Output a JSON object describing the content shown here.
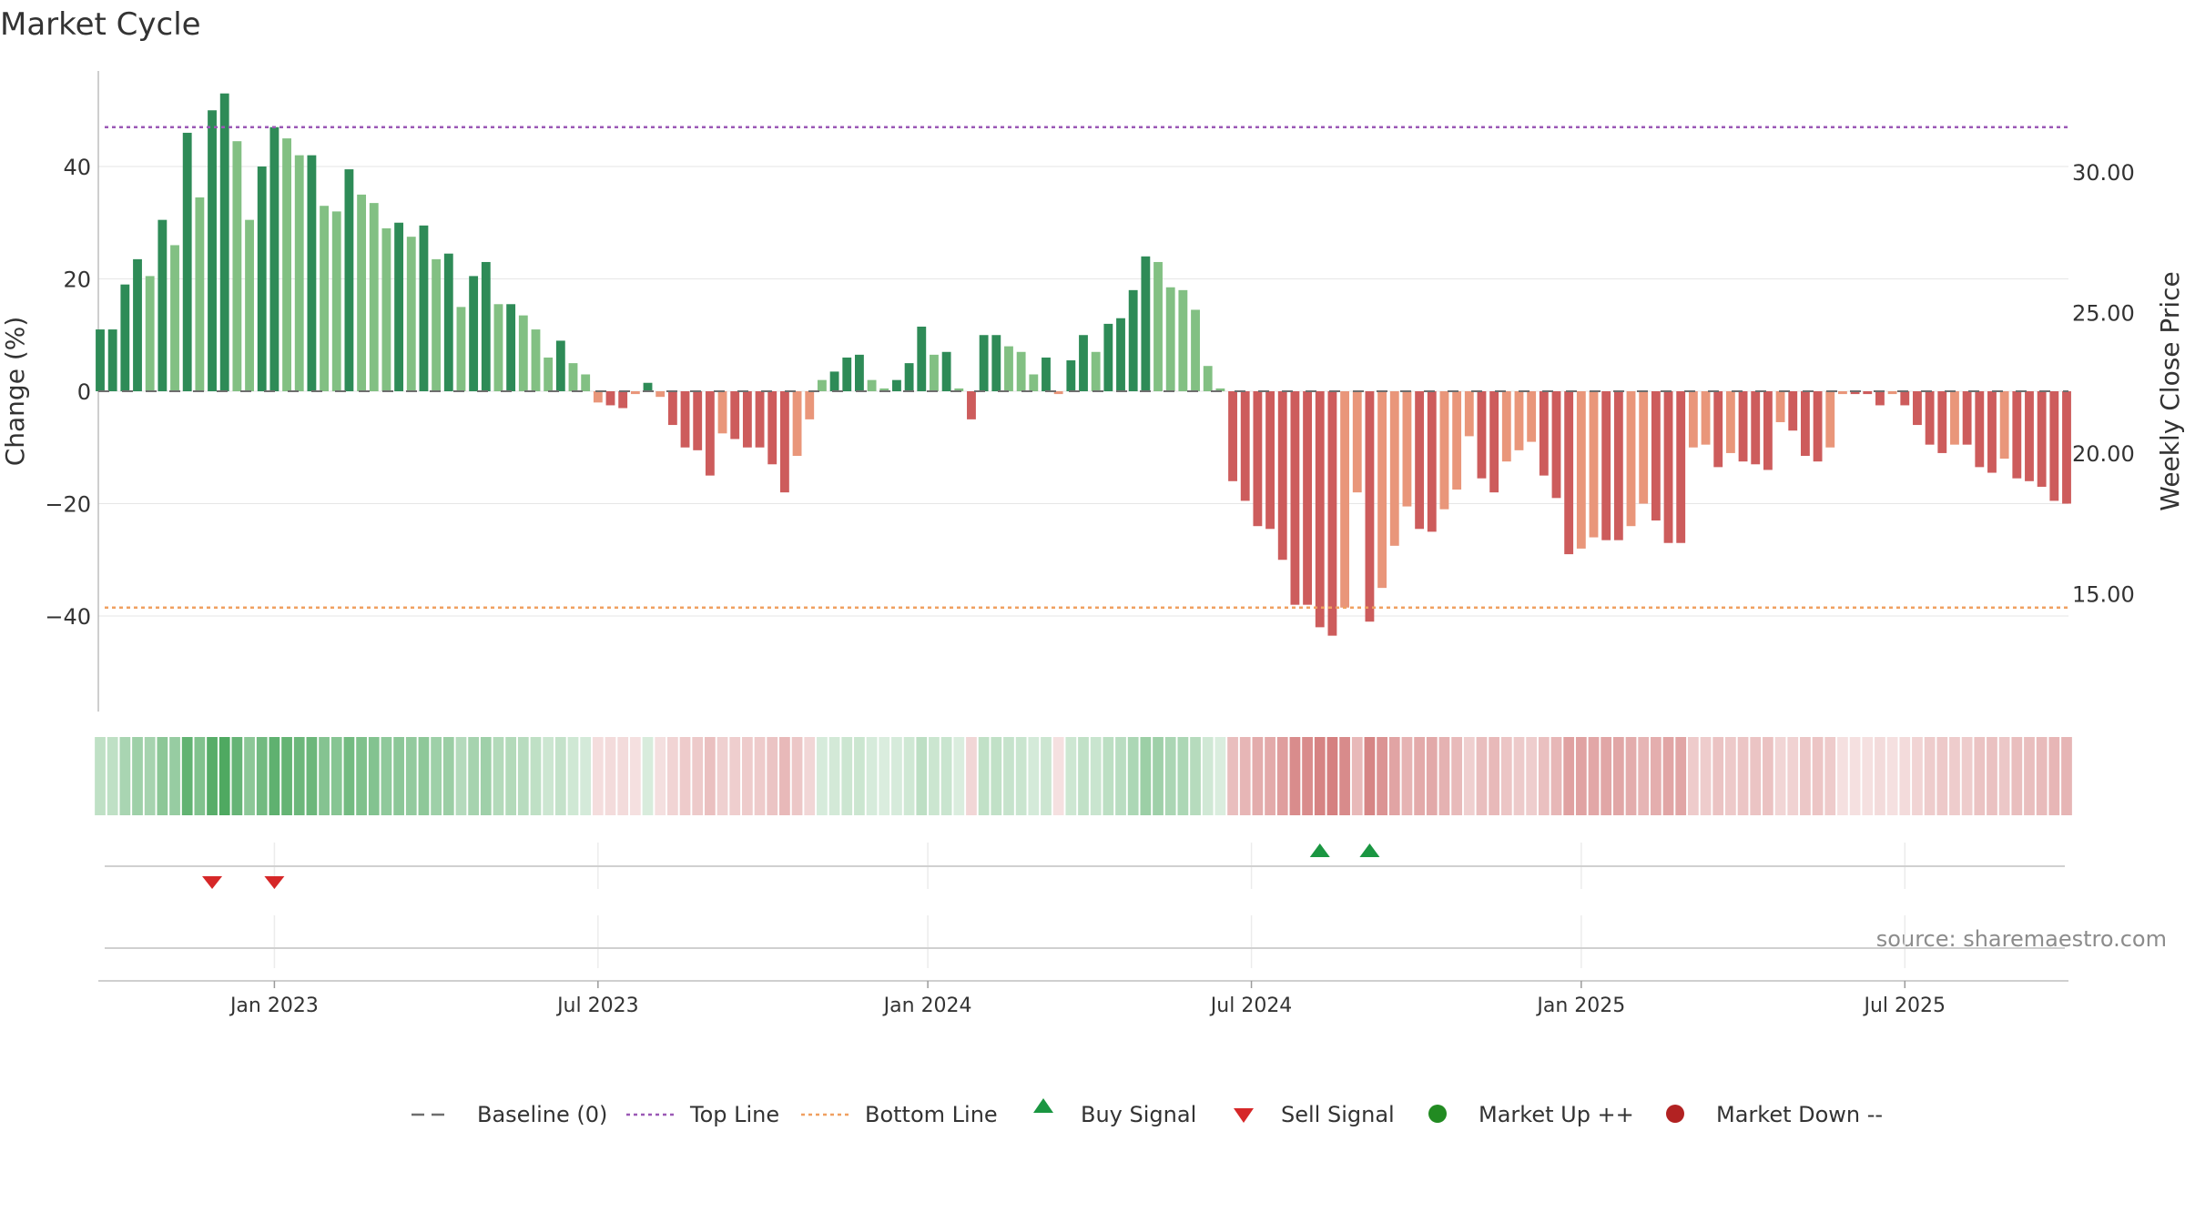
{
  "chart_data": {
    "type": "bar",
    "title": "Market Cycle",
    "ylabel": "Change (%)",
    "y2label": "Weekly Close Price",
    "ylim": [
      -57,
      57
    ],
    "y2lim": [
      10.8,
      33.6
    ],
    "y_ticks": [
      40,
      20,
      0,
      -20,
      -40
    ],
    "y_tick_labels": [
      "40",
      "20",
      "0",
      "−20",
      "−40"
    ],
    "y2_ticks": [
      30,
      25,
      20,
      15
    ],
    "y2_tick_labels": [
      "30.00",
      "25.00",
      "20.00",
      "15.00"
    ],
    "x_ticks": [
      {
        "label": "Jan 2023",
        "week": 14
      },
      {
        "label": "Jul 2023",
        "week": 40
      },
      {
        "label": "Jan 2024",
        "week": 66.5
      },
      {
        "label": "Jul 2024",
        "week": 92.5
      },
      {
        "label": "Jan 2025",
        "week": 119
      },
      {
        "label": "Jul 2025",
        "week": 145
      }
    ],
    "top_line": 47,
    "bottom_line": -38.5,
    "weekly_change": [
      11,
      11,
      19,
      23.5,
      20.5,
      30.5,
      26,
      46,
      34.5,
      50,
      53,
      44.5,
      30.5,
      40,
      47,
      45,
      42,
      42,
      33,
      32,
      39.5,
      35,
      33.5,
      29,
      30,
      27.5,
      29.5,
      23.5,
      24.5,
      15,
      20.5,
      23,
      15.5,
      15.5,
      13.5,
      11,
      6,
      9,
      5,
      3,
      -2,
      -2.5,
      -3,
      -0.5,
      1.5,
      -1,
      -6,
      -10,
      -10.5,
      -15,
      -7.5,
      -8.5,
      -10,
      -10,
      -13,
      -18,
      -11.5,
      -5,
      2,
      3.5,
      6,
      6.5,
      2,
      0.5,
      2,
      5,
      11.5,
      6.5,
      7,
      0.5,
      -5,
      10,
      10,
      8,
      7,
      3,
      6,
      -0.5,
      5.5,
      10,
      7,
      12,
      13,
      18,
      24,
      23,
      18.5,
      18,
      14.5,
      4.5,
      0.5,
      -16,
      -19.5,
      -24,
      -24.5,
      -30,
      -38,
      -38,
      -42,
      -43.5,
      -38.5,
      -18,
      -41,
      -35,
      -27.5,
      -20.5,
      -24.5,
      -25,
      -21,
      -17.5,
      -8,
      -15.5,
      -18,
      -12.5,
      -10.5,
      -9,
      -15,
      -19,
      -29,
      -28,
      -26,
      -26.5,
      -26.5,
      -24,
      -20,
      -23,
      -27,
      -27,
      -10,
      -9.5,
      -13.5,
      -11,
      -12.5,
      -13,
      -14,
      -5.5,
      -7,
      -11.5,
      -12.5,
      -10,
      -0.5,
      -0.5,
      -0.5,
      -2.5,
      -0.5,
      -2.5,
      -6,
      -9.5,
      -11,
      -9.5,
      -9.5,
      -13.5,
      -14.5,
      -12,
      -15.5,
      -16,
      -17,
      -19.5,
      -20
    ],
    "buy_signal_weeks": [
      98,
      102
    ],
    "sell_signal_weeks": [
      9,
      14
    ],
    "legend": [
      {
        "label": "Baseline (0)",
        "marker": "dashed-gray"
      },
      {
        "label": "Top Line",
        "marker": "dotted-purple"
      },
      {
        "label": "Bottom Line",
        "marker": "dotted-orange"
      },
      {
        "label": "Buy Signal",
        "marker": "triangle-up-green"
      },
      {
        "label": "Sell Signal",
        "marker": "triangle-down-red"
      },
      {
        "label": "Market Up ++",
        "marker": "circle-green"
      },
      {
        "label": "Market Down --",
        "marker": "circle-red"
      }
    ],
    "legend_placement": "bottom-center",
    "source": "source: sharemaestro.com",
    "grid": true
  },
  "colors": {
    "up_dark": "#2e8b57",
    "up_light": "#82c083",
    "down_dark": "#cd5c5c",
    "down_light": "#e9967a",
    "top_line": "#9b59b6",
    "bottom_line": "#f0a060",
    "buy": "#1a9641",
    "sell": "#d62728",
    "market_up": "#228b22",
    "market_down": "#b22222",
    "baseline": "#6e6e6e"
  }
}
